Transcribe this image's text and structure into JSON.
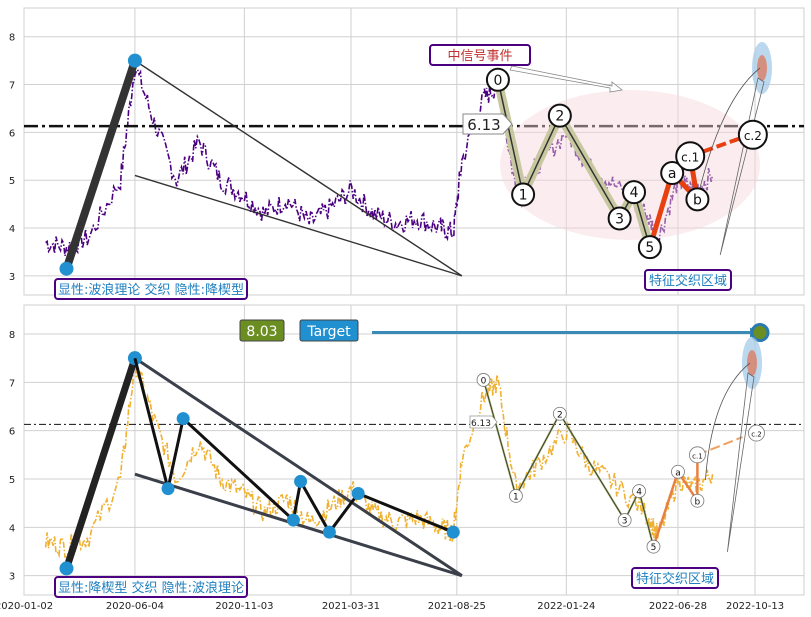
{
  "chart_data": [
    {
      "type": "line",
      "panel": "top",
      "title": "",
      "ylim": [
        2.6,
        8.6
      ],
      "yticks": [
        3,
        4,
        5,
        6,
        7,
        8
      ],
      "grid": true,
      "series_color": "#4b0082",
      "series_style": "dash-dot",
      "series": [
        {
          "x": [
            "2020-02-01",
            "2020-03-01",
            "2020-04-01",
            "2020-05-15",
            "2020-06-04",
            "2020-07-01",
            "2020-08-01",
            "2020-09-01",
            "2020-10-01",
            "2020-11-01",
            "2020-12-01",
            "2021-01-01",
            "2021-02-01",
            "2021-03-01",
            "2021-04-01",
            "2021-05-01",
            "2021-06-01",
            "2021-07-01",
            "2021-08-01",
            "2021-08-20",
            "2021-09-01",
            "2021-10-01",
            "2021-10-21",
            "2021-11-15",
            "2021-12-15",
            "2022-01-24",
            "2022-02-24",
            "2022-04-01",
            "2022-05-15",
            "2022-06-01",
            "2022-06-28",
            "2022-07-20",
            "2022-08-15"
          ],
          "y": [
            3.7,
            3.6,
            3.8,
            5.0,
            7.4,
            6.2,
            5.0,
            5.8,
            5.0,
            4.7,
            4.3,
            4.6,
            4.1,
            4.4,
            4.8,
            4.3,
            4.1,
            4.2,
            4.0,
            3.9,
            5.4,
            6.7,
            7.0,
            4.8,
            5.3,
            6.0,
            5.3,
            4.9,
            4.3,
            3.8,
            5.0,
            4.8,
            5.1
          ]
        }
      ],
      "hline": {
        "value": 6.13,
        "label": "6.13"
      },
      "wave_labels": [
        {
          "label": "0",
          "x": "2021-10-21",
          "y": 7.1
        },
        {
          "label": "1",
          "x": "2021-11-25",
          "y": 4.7
        },
        {
          "label": "2",
          "x": "2022-01-15",
          "y": 6.35
        },
        {
          "label": "3",
          "x": "2022-04-08",
          "y": 4.2
        },
        {
          "label": "4",
          "x": "2022-04-28",
          "y": 4.75
        },
        {
          "label": "5",
          "x": "2022-05-20",
          "y": 3.6
        },
        {
          "label": "a",
          "x": "2022-06-20",
          "y": 5.15
        },
        {
          "label": "b",
          "x": "2022-07-25",
          "y": 4.6
        },
        {
          "label": "c.1",
          "x": "2022-07-15",
          "y": 5.5
        },
        {
          "label": "c.2",
          "x": "2022-10-10",
          "y": 5.95
        }
      ],
      "annotations": [
        "显性:波浪理论 交织 隐性:降楔型",
        "中信号事件",
        "特征交织区域"
      ]
    },
    {
      "type": "line",
      "panel": "bottom",
      "title": "",
      "ylim": [
        2.6,
        8.6
      ],
      "yticks": [
        3,
        4,
        5,
        6,
        7,
        8
      ],
      "grid": true,
      "series_color": "#f0b030",
      "series_style": "dash-dot",
      "x_tick_labels": [
        "2020-01-02",
        "2020-06-04",
        "2020-11-03",
        "2021-03-31",
        "2021-08-25",
        "2022-01-24",
        "2022-06-28",
        "2022-10-13"
      ],
      "series": [
        {
          "x": [
            "2020-02-01",
            "2020-03-01",
            "2020-04-01",
            "2020-05-15",
            "2020-06-04",
            "2020-07-01",
            "2020-08-01",
            "2020-09-01",
            "2020-10-01",
            "2020-11-01",
            "2020-12-01",
            "2021-01-01",
            "2021-02-01",
            "2021-03-01",
            "2021-04-01",
            "2021-05-01",
            "2021-06-01",
            "2021-07-01",
            "2021-08-01",
            "2021-08-20",
            "2021-09-01",
            "2021-10-01",
            "2021-10-21",
            "2021-11-15",
            "2021-12-15",
            "2022-01-24",
            "2022-02-24",
            "2022-04-01",
            "2022-05-15",
            "2022-06-01",
            "2022-06-28",
            "2022-07-20",
            "2022-08-15"
          ],
          "y": [
            3.7,
            3.6,
            3.8,
            5.0,
            7.4,
            6.2,
            5.0,
            5.8,
            5.0,
            4.7,
            4.3,
            4.6,
            4.1,
            4.4,
            4.8,
            4.3,
            4.1,
            4.2,
            4.0,
            3.9,
            5.4,
            6.7,
            7.0,
            4.8,
            5.3,
            6.0,
            5.3,
            4.9,
            4.3,
            3.8,
            5.0,
            4.8,
            5.1
          ]
        }
      ],
      "hline": {
        "value": 6.13,
        "label": "6.13"
      },
      "target": {
        "value": 8.03,
        "value_label": "8.03",
        "label": "Target"
      },
      "wave_labels": [
        {
          "label": "0",
          "x": "2021-10-01",
          "y": 7.05
        },
        {
          "label": "1",
          "x": "2021-11-15",
          "y": 4.65
        },
        {
          "label": "2",
          "x": "2022-01-15",
          "y": 6.35
        },
        {
          "label": "3",
          "x": "2022-04-15",
          "y": 4.15
        },
        {
          "label": "4",
          "x": "2022-05-05",
          "y": 4.75
        },
        {
          "label": "5",
          "x": "2022-05-25",
          "y": 3.6
        },
        {
          "label": "a",
          "x": "2022-06-28",
          "y": 5.15
        },
        {
          "label": "b",
          "x": "2022-07-25",
          "y": 4.55
        },
        {
          "label": "c.1",
          "x": "2022-07-25",
          "y": 5.5
        },
        {
          "label": "c.2",
          "x": "2022-10-15",
          "y": 5.95
        }
      ],
      "annotations": [
        "显性:降楔型 交织 隐性:波浪理论",
        "特征交织区域"
      ]
    }
  ],
  "labels": {
    "top_badge": "显性:波浪理论 交织 隐性:降楔型",
    "bottom_badge": "显性:降楔型 交织 隐性:波浪理论",
    "signal_event": "中信号事件",
    "feature_zone_top": "特征交织区域",
    "feature_zone_bottom": "特征交织区域",
    "hline_value_top": "6.13",
    "hline_value_bottom": "6.13",
    "target_value": "8.03",
    "target_text": "Target"
  },
  "colors": {
    "wave_fill": "#c8c8a0",
    "wave_red": "#e84010",
    "marker_blue": "#2090d0",
    "badge_border": "#4b0082",
    "badge_text": "#2080c0",
    "signal_text": "#c03030",
    "target_green": "#6b8e23",
    "target_blue": "#2090d0"
  }
}
